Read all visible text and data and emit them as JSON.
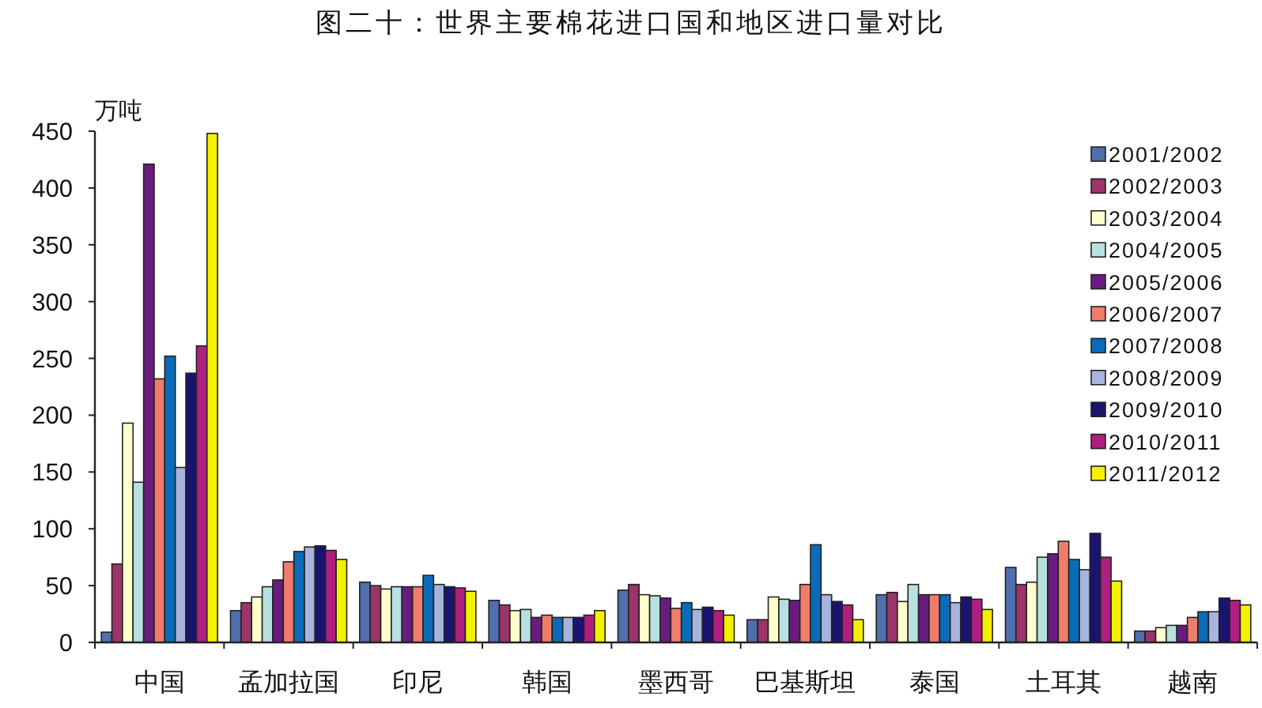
{
  "chart_data": {
    "type": "bar",
    "title": "图二十：世界主要棉花进口国和地区进口量对比",
    "ylabel": "万吨",
    "categories": [
      "中国",
      "孟加拉国",
      "印尼",
      "韩国",
      "墨西哥",
      "巴基斯坦",
      "泰国",
      "土耳其",
      "越南"
    ],
    "series": [
      {
        "name": "2001/2002",
        "color": "#4f6fad",
        "values": [
          9,
          28,
          53,
          37,
          46,
          20,
          42,
          66,
          10
        ]
      },
      {
        "name": "2002/2003",
        "color": "#9b3467",
        "values": [
          69,
          35,
          50,
          33,
          51,
          20,
          44,
          51,
          10
        ]
      },
      {
        "name": "2003/2004",
        "color": "#ffffcc",
        "values": [
          193,
          40,
          47,
          28,
          42,
          40,
          36,
          53,
          13
        ]
      },
      {
        "name": "2004/2005",
        "color": "#b8e0e0",
        "values": [
          141,
          49,
          49,
          29,
          41,
          38,
          51,
          75,
          15
        ]
      },
      {
        "name": "2005/2006",
        "color": "#6a1c7e",
        "values": [
          421,
          55,
          49,
          22,
          39,
          37,
          42,
          78,
          15
        ]
      },
      {
        "name": "2006/2007",
        "color": "#f07c6c",
        "values": [
          232,
          71,
          49,
          24,
          30,
          51,
          42,
          89,
          22
        ]
      },
      {
        "name": "2007/2008",
        "color": "#0a6cb8",
        "values": [
          252,
          80,
          59,
          22,
          35,
          86,
          42,
          73,
          27
        ]
      },
      {
        "name": "2008/2009",
        "color": "#a8b4de",
        "values": [
          154,
          84,
          51,
          22,
          29,
          42,
          35,
          64,
          27
        ]
      },
      {
        "name": "2009/2010",
        "color": "#1a1470",
        "values": [
          237,
          85,
          49,
          22,
          31,
          36,
          40,
          96,
          39
        ]
      },
      {
        "name": "2010/2011",
        "color": "#b01e80",
        "values": [
          261,
          81,
          48,
          24,
          28,
          33,
          38,
          75,
          37
        ]
      },
      {
        "name": "2011/2012",
        "color": "#f5f000",
        "values": [
          448,
          73,
          45,
          28,
          24,
          20,
          29,
          54,
          33
        ]
      }
    ],
    "ylim": [
      0,
      450
    ],
    "yticks": [
      0,
      50,
      100,
      150,
      200,
      250,
      300,
      350,
      400,
      450
    ],
    "grid": false,
    "legend": "top right"
  }
}
